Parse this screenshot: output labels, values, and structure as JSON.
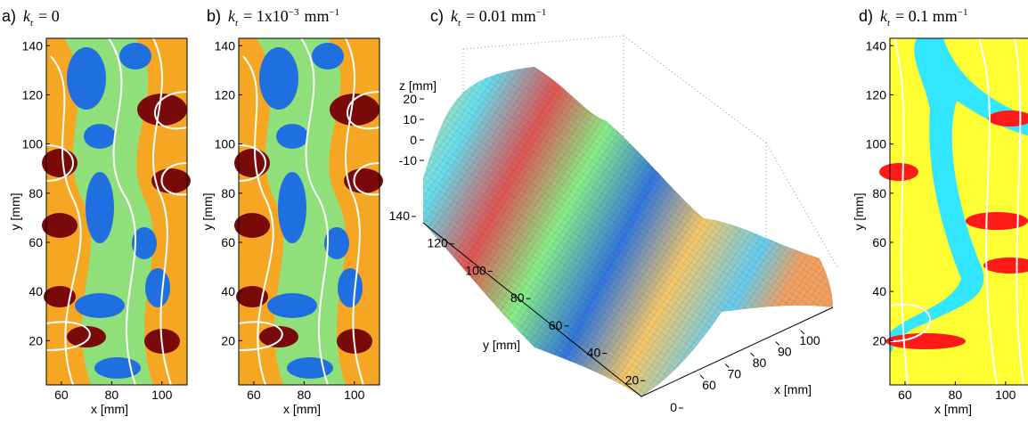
{
  "panels": [
    {
      "label": "a)",
      "k": "k",
      "sub": "t",
      "eq": "= 0",
      "xlabel": "x [mm]",
      "ylabel": "y [mm]",
      "xlim": [
        54,
        110
      ],
      "ylim": [
        2,
        143
      ],
      "xticks": [
        60,
        80,
        100
      ],
      "yticks": [
        20,
        40,
        60,
        80,
        100,
        120,
        140
      ]
    },
    {
      "label": "b)",
      "k": "k",
      "sub": "t",
      "eq": "= 1x10",
      "sup": "−3",
      "unit": "mm",
      "unit_sup": "−1",
      "xlabel": "x [mm]",
      "ylabel": "y [mm]",
      "xlim": [
        54,
        110
      ],
      "ylim": [
        2,
        143
      ],
      "xticks": [
        60,
        80,
        100
      ],
      "yticks": [
        20,
        40,
        60,
        80,
        100,
        120,
        140
      ]
    },
    {
      "label": "c)",
      "k": "k",
      "sub": "t",
      "eq": "= 0.01 mm",
      "sup": "−1",
      "xlabel": "x [mm]",
      "ylabel": "y [mm]",
      "zlabel": "z [mm]",
      "xticks": [
        60,
        70,
        80,
        90,
        100
      ],
      "yticks": [
        0,
        20,
        40,
        60,
        80,
        100,
        120,
        140
      ],
      "zticks": [
        -10,
        0,
        10,
        20
      ]
    },
    {
      "label": "d)",
      "k": "k",
      "sub": "t",
      "eq": "= 0.1 mm",
      "sup": "−1",
      "xlabel": "x [mm]",
      "ylabel": "y [mm]",
      "xlim": [
        54,
        110
      ],
      "ylim": [
        2,
        143
      ],
      "xticks": [
        60,
        80,
        100
      ],
      "yticks": [
        20,
        40,
        60,
        80,
        100,
        120,
        140
      ]
    }
  ]
}
